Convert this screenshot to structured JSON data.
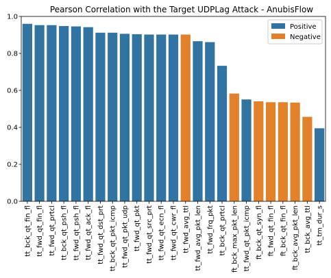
{
  "chart_data": {
    "type": "bar",
    "title": "Pearson Correlation with the Target UDPLag Attack - AnubisFlow",
    "xlabel": "",
    "ylabel": "",
    "ylim": [
      0,
      1.0
    ],
    "yticks": [
      "0.0",
      "0.2",
      "0.4",
      "0.6",
      "0.8",
      "1.0"
    ],
    "grid": false,
    "legend_position": "top-right",
    "colors": {
      "Positive": "#3274a1",
      "Negative": "#e1812c"
    },
    "legend": [
      {
        "label": "Positive",
        "color": "#3274a1"
      },
      {
        "label": "Negative",
        "color": "#e1812c"
      }
    ],
    "categories": [
      "tt_bck_qt_fin_fl",
      "tt_fwd_qt_fin_fl",
      "tt_fwd_qt_prtcl",
      "tt_bck_qt_psh_fl",
      "tt_fwd_qt_psh_fl",
      "tt_fwd_qt_ack_fl",
      "tt_fwd_qt_dst_prt",
      "tt_bck_qt_pkt_icmp",
      "tt_fwd_qt_pkt_udp",
      "tt_fwd_qt_pkt",
      "tt_fwd_qt_src_prt",
      "tt_fwd_qt_ecn_fl",
      "tt_fwd_qt_cwr_fl",
      "tt_fwd_avg_ttl",
      "tt_fwd_avg_pkt_len",
      "tt_fwd_frq_pkt",
      "tt_bck_qt_prtcl",
      "ft_bck_max_pkt_len",
      "tt_fwd_qt_pkt_icmp",
      "ft_bck_qt_syn_fl",
      "ft_fwd_qt_fin_fl",
      "ft_bck_qt_fin_fl",
      "ft_bck_avg_pkt_len",
      "tt_bck_avg_ttl",
      "tt_tm_dur_s"
    ],
    "values": [
      0.96,
      0.953,
      0.953,
      0.948,
      0.946,
      0.942,
      0.912,
      0.912,
      0.906,
      0.904,
      0.902,
      0.902,
      0.902,
      0.902,
      0.866,
      0.861,
      0.733,
      0.583,
      0.551,
      0.541,
      0.536,
      0.536,
      0.534,
      0.457,
      0.395
    ],
    "signs": [
      "Positive",
      "Positive",
      "Positive",
      "Positive",
      "Positive",
      "Positive",
      "Positive",
      "Positive",
      "Positive",
      "Positive",
      "Positive",
      "Positive",
      "Positive",
      "Negative",
      "Positive",
      "Positive",
      "Positive",
      "Negative",
      "Positive",
      "Negative",
      "Negative",
      "Negative",
      "Negative",
      "Negative",
      "Positive"
    ]
  }
}
